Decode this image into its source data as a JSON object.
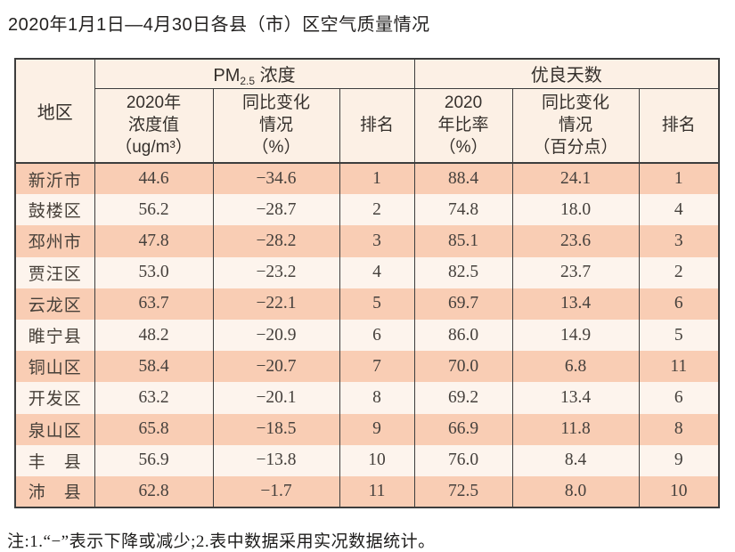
{
  "page": {
    "title": "2020年1月1日—4月30日各县（市）区空气质量情况"
  },
  "table": {
    "header": {
      "region": "地区",
      "pm25_group": {
        "prefix": "PM",
        "sub": "2.5",
        "suffix": " 浓度"
      },
      "good_days_group": "优良天数",
      "sub": {
        "pm25_value": "2020年\n浓度值\n（ug/m³）",
        "pm25_change": "同比变化\n情况\n（%）",
        "pm25_rank": "排名",
        "rate_2020": "2020\n年比率\n（%）",
        "rate_change": "同比变化\n情况\n（百分点）",
        "rate_rank": "排名"
      }
    },
    "cell_names": [
      "region-cell",
      "pm25-value-cell",
      "pm25-change-cell",
      "pm25-rank-cell",
      "good-days-rate-cell",
      "good-days-change-cell",
      "good-days-rank-cell"
    ],
    "rows": [
      [
        "新沂市",
        "44.6",
        "−34.6",
        "1",
        "88.4",
        "24.1",
        "1"
      ],
      [
        "鼓楼区",
        "56.2",
        "−28.7",
        "2",
        "74.8",
        "18.0",
        "4"
      ],
      [
        "邳州市",
        "47.8",
        "−28.2",
        "3",
        "85.1",
        "23.6",
        "3"
      ],
      [
        "贾汪区",
        "53.0",
        "−23.2",
        "4",
        "82.5",
        "23.7",
        "2"
      ],
      [
        "云龙区",
        "63.7",
        "−22.1",
        "5",
        "69.7",
        "13.4",
        "6"
      ],
      [
        "睢宁县",
        "48.2",
        "−20.9",
        "6",
        "86.0",
        "14.9",
        "5"
      ],
      [
        "铜山区",
        "58.4",
        "−20.7",
        "7",
        "70.0",
        "6.8",
        "11"
      ],
      [
        "开发区",
        "63.2",
        "−20.1",
        "8",
        "69.2",
        "13.4",
        "6"
      ],
      [
        "泉山区",
        "65.8",
        "−18.5",
        "9",
        "66.9",
        "11.8",
        "8"
      ],
      [
        "丰　县",
        "56.9",
        "−13.8",
        "10",
        "76.0",
        "8.4",
        "9"
      ],
      [
        "沛　县",
        "62.8",
        "−1.7",
        "11",
        "72.5",
        "8.0",
        "10"
      ]
    ]
  },
  "note": "注:1.“−”表示下降或减少;2.表中数据采用实况数据统计。",
  "colors": {
    "header_bg": "#fcf0e5",
    "row_odd": "#f9cdb4",
    "row_even": "#fdf4ed",
    "border": "#3d3d3d",
    "title_ink": "#232120",
    "number_ink": "#45403c"
  }
}
